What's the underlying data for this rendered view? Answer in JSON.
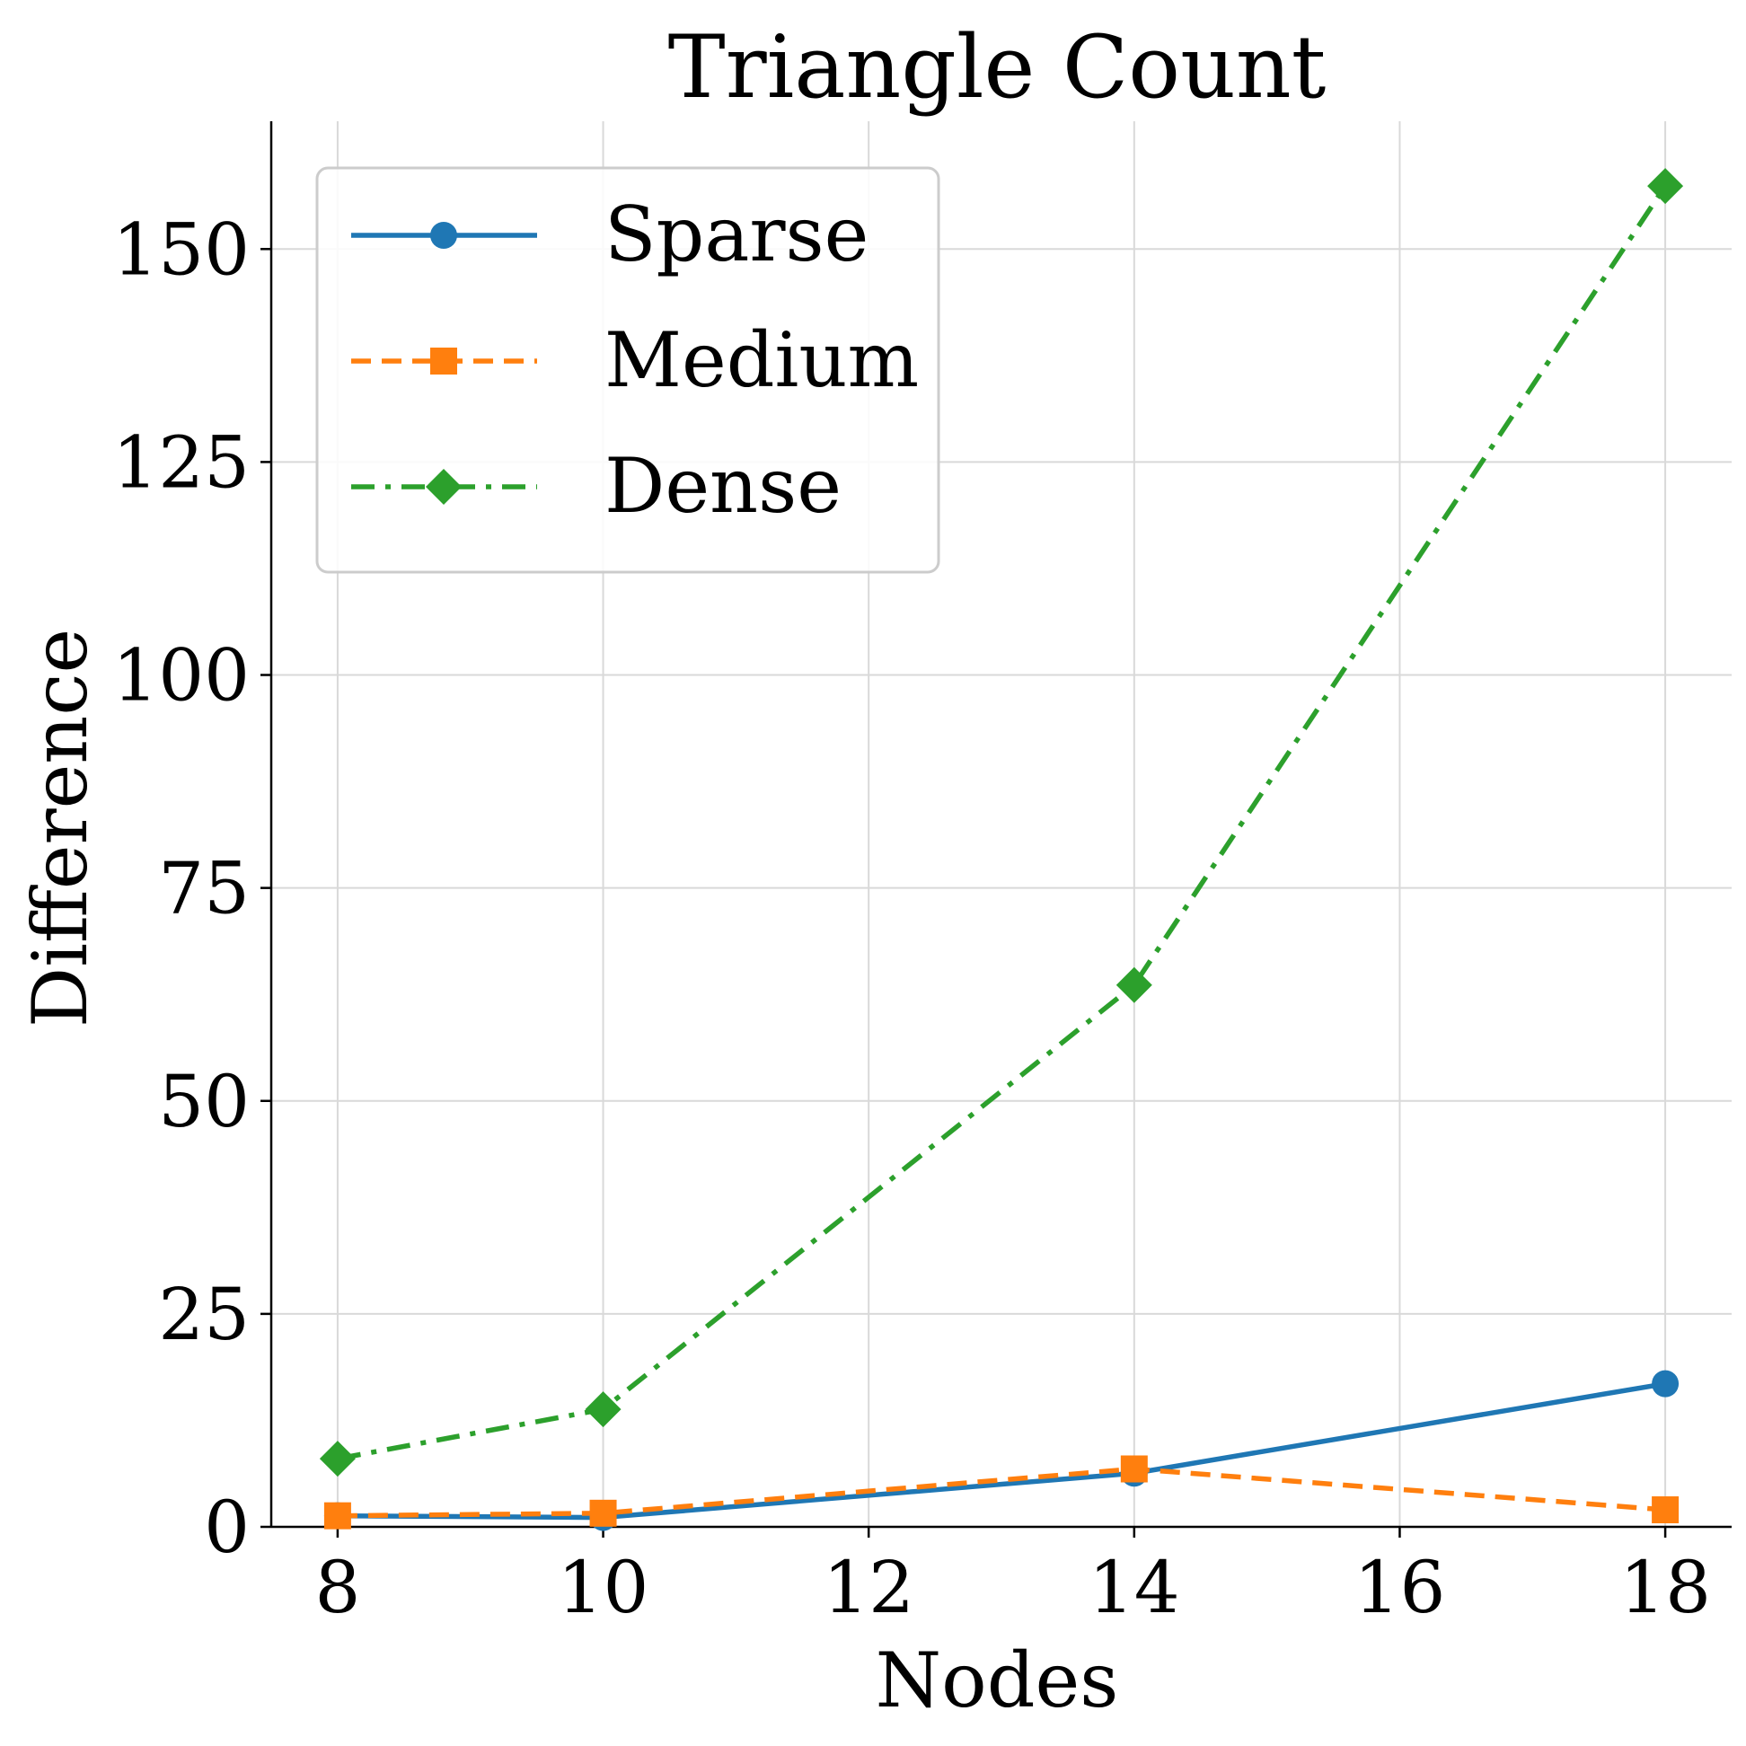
{
  "chart_data": {
    "type": "line",
    "title": "Triangle Count",
    "xlabel": "Nodes",
    "ylabel": "Difference",
    "x": [
      8,
      10,
      14,
      18
    ],
    "xlim": [
      7.5,
      18.5
    ],
    "ylim": [
      0,
      165
    ],
    "xticks": [
      8,
      10,
      12,
      14,
      16,
      18
    ],
    "yticks": [
      0,
      25,
      50,
      75,
      100,
      125,
      150
    ],
    "grid": true,
    "legend_position": "top-left",
    "series": [
      {
        "name": "Sparse",
        "values": [
          1.3,
          1.1,
          6.3,
          16.8
        ],
        "color": "#1f77b4",
        "dash": "solid",
        "marker": "circle"
      },
      {
        "name": "Medium",
        "values": [
          1.3,
          1.6,
          6.8,
          2.0
        ],
        "color": "#ff7f0e",
        "dash": "dashed",
        "marker": "square"
      },
      {
        "name": "Dense",
        "values": [
          8.0,
          13.8,
          63.6,
          157.4
        ],
        "color": "#2ca02c",
        "dash": "dashdot",
        "marker": "diamond"
      }
    ]
  }
}
